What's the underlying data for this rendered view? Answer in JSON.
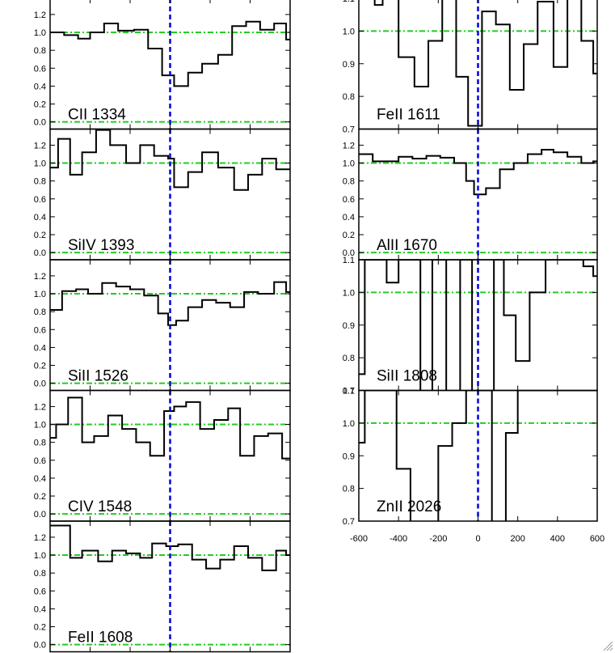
{
  "chart_data": {
    "type": "line",
    "style": {
      "spectrum_color": "#000000",
      "center_line_color": "#0000dd",
      "continuum_line_color": "#22cc22"
    },
    "x_ticks": [
      -600,
      -400,
      -200,
      0,
      200,
      400,
      600
    ],
    "x_tick_labels": [
      "-600",
      "-400",
      "-200",
      "0",
      "200",
      "400",
      "600"
    ],
    "xlim": [
      -600,
      600
    ],
    "panels": [
      {
        "label": "CII 1334",
        "column": "left",
        "row": 0,
        "ylim": [
          -0.08,
          1.38
        ],
        "yticks": [
          0.0,
          0.2,
          0.4,
          0.6,
          0.8,
          1.0,
          1.2
        ],
        "ytick_labels": [
          "0.0",
          "0.2",
          "0.4",
          "0.6",
          "0.8",
          "1.0",
          "1.2"
        ],
        "continuum": [
          0,
          1
        ],
        "x": [
          -600,
          -530,
          -460,
          -400,
          -330,
          -260,
          -180,
          -110,
          -40,
          20,
          90,
          160,
          240,
          310,
          380,
          450,
          520,
          580
        ],
        "y": [
          1.0,
          0.97,
          0.93,
          1.0,
          1.1,
          1.02,
          1.03,
          0.82,
          0.52,
          0.4,
          0.55,
          0.65,
          0.75,
          1.07,
          1.12,
          1.03,
          1.1,
          0.92
        ]
      },
      {
        "label": "SiIV 1393",
        "column": "left",
        "row": 1,
        "ylim": [
          -0.08,
          1.38
        ],
        "yticks": [
          0.0,
          0.2,
          0.4,
          0.6,
          0.8,
          1.0,
          1.2
        ],
        "ytick_labels": [
          "0.0",
          "0.2",
          "0.4",
          "0.6",
          "0.8",
          "1.0",
          "1.2"
        ],
        "continuum": [
          0,
          1
        ],
        "x": [
          -600,
          -560,
          -500,
          -440,
          -370,
          -300,
          -220,
          -150,
          -80,
          -10,
          20,
          90,
          160,
          240,
          320,
          390,
          460,
          530
        ],
        "y": [
          0.95,
          1.27,
          0.87,
          1.12,
          1.37,
          1.2,
          1.0,
          1.2,
          1.08,
          1.05,
          0.73,
          0.9,
          1.12,
          0.95,
          0.7,
          0.87,
          1.05,
          0.93
        ]
      },
      {
        "label": "SiII 1526",
        "column": "left",
        "row": 2,
        "ylim": [
          -0.08,
          1.38
        ],
        "yticks": [
          0.0,
          0.2,
          0.4,
          0.6,
          0.8,
          1.0,
          1.2
        ],
        "ytick_labels": [
          "0.0",
          "0.2",
          "0.4",
          "0.6",
          "0.8",
          "1.0",
          "1.2"
        ],
        "continuum": [
          0,
          1
        ],
        "x": [
          -600,
          -540,
          -470,
          -410,
          -340,
          -270,
          -200,
          -130,
          -60,
          -10,
          30,
          90,
          160,
          230,
          300,
          370,
          440,
          520,
          580
        ],
        "y": [
          0.82,
          1.03,
          1.05,
          1.0,
          1.12,
          1.08,
          1.05,
          0.98,
          0.78,
          0.65,
          0.7,
          0.85,
          0.93,
          0.9,
          0.85,
          1.02,
          1.0,
          1.13,
          1.02
        ]
      },
      {
        "label": "CIV 1548",
        "column": "left",
        "row": 3,
        "ylim": [
          -0.08,
          1.38
        ],
        "yticks": [
          0.0,
          0.2,
          0.4,
          0.6,
          0.8,
          1.0,
          1.2
        ],
        "ytick_labels": [
          "0.0",
          "0.2",
          "0.4",
          "0.6",
          "0.8",
          "1.0",
          "1.2"
        ],
        "continuum": [
          0,
          1
        ],
        "x": [
          -600,
          -570,
          -510,
          -440,
          -380,
          -310,
          -240,
          -170,
          -100,
          -30,
          20,
          80,
          150,
          220,
          290,
          350,
          420,
          490,
          560
        ],
        "y": [
          0.85,
          1.0,
          1.3,
          0.8,
          0.87,
          1.1,
          0.95,
          0.8,
          0.65,
          1.15,
          1.2,
          1.25,
          0.95,
          1.05,
          1.18,
          0.65,
          0.87,
          0.9,
          0.62
        ]
      },
      {
        "label": "FeII 1608",
        "column": "left",
        "row": 4,
        "ylim": [
          -0.08,
          1.38
        ],
        "yticks": [
          0.0,
          0.2,
          0.4,
          0.6,
          0.8,
          1.0,
          1.2
        ],
        "ytick_labels": [
          "0.0",
          "0.2",
          "0.4",
          "0.6",
          "0.8",
          "1.0",
          "1.2"
        ],
        "continuum": [
          0,
          1
        ],
        "x": [
          -600,
          -500,
          -440,
          -360,
          -290,
          -220,
          -150,
          -90,
          -20,
          40,
          110,
          180,
          250,
          320,
          390,
          460,
          530,
          580
        ],
        "y": [
          1.33,
          0.97,
          1.05,
          0.93,
          1.05,
          1.02,
          0.97,
          1.13,
          1.1,
          1.12,
          0.95,
          0.85,
          0.95,
          1.1,
          0.97,
          0.83,
          1.05,
          1.0
        ]
      },
      {
        "label": "FeII 1611",
        "column": "right",
        "row": 0,
        "ylim": [
          0.7,
          1.1
        ],
        "yticks": [
          0.7,
          0.8,
          0.9,
          1.0,
          1.1
        ],
        "ytick_labels": [
          "0.7",
          "0.8",
          "0.9",
          "1.0",
          "1.1"
        ],
        "continuum": [
          1
        ],
        "x": [
          -600,
          -520,
          -480,
          -400,
          -320,
          -250,
          -180,
          -110,
          -50,
          20,
          90,
          160,
          230,
          300,
          380,
          450,
          520,
          580
        ],
        "y": [
          1.1,
          1.08,
          1.1,
          0.92,
          0.83,
          0.97,
          1.1,
          0.86,
          0.71,
          1.06,
          1.02,
          0.82,
          0.96,
          1.09,
          0.89,
          1.1,
          0.97,
          0.87
        ]
      },
      {
        "label": "AlII 1670",
        "column": "right",
        "row": 1,
        "ylim": [
          -0.08,
          1.38
        ],
        "yticks": [
          0.0,
          0.2,
          0.4,
          0.6,
          0.8,
          1.0,
          1.2
        ],
        "ytick_labels": [
          "0.0",
          "0.2",
          "0.4",
          "0.6",
          "0.8",
          "1.0",
          "1.2"
        ],
        "continuum": [
          0,
          1
        ],
        "x": [
          -600,
          -530,
          -470,
          -400,
          -330,
          -260,
          -190,
          -120,
          -60,
          -20,
          40,
          110,
          180,
          250,
          320,
          380,
          450,
          520,
          580
        ],
        "y": [
          1.1,
          1.02,
          1.02,
          1.07,
          1.05,
          1.08,
          1.06,
          1.0,
          0.8,
          0.65,
          0.72,
          0.93,
          1.0,
          1.1,
          1.15,
          1.12,
          1.07,
          1.0,
          1.02
        ]
      },
      {
        "label": "SiII 1808",
        "column": "right",
        "row": 2,
        "ylim": [
          0.7,
          1.1
        ],
        "yticks": [
          0.7,
          0.8,
          0.9,
          1.0,
          1.1
        ],
        "ytick_labels": [
          "0.7",
          "0.8",
          "0.9",
          "1.0",
          "1.1"
        ],
        "continuum": [
          1
        ],
        "x": [
          -600,
          -570,
          -530,
          -460,
          -400,
          -290,
          -230,
          -160,
          -90,
          -30,
          20,
          80,
          130,
          190,
          260,
          340,
          400,
          470,
          530,
          580
        ],
        "y": [
          0.75,
          1.1,
          1.1,
          1.03,
          1.1,
          0.65,
          1.1,
          0.65,
          1.1,
          0.65,
          0.65,
          1.1,
          0.93,
          0.79,
          1.0,
          1.1,
          1.1,
          1.1,
          1.08,
          1.05
        ]
      },
      {
        "label": "ZnII 2026",
        "column": "right",
        "row": 3,
        "ylim": [
          0.7,
          1.1
        ],
        "yticks": [
          0.7,
          0.8,
          0.9,
          1.0,
          1.1
        ],
        "ytick_labels": [
          "0.7",
          "0.8",
          "0.9",
          "1.0",
          "1.1"
        ],
        "continuum": [
          1
        ],
        "x": [
          -600,
          -570,
          -520,
          -410,
          -340,
          -280,
          -200,
          -130,
          -60,
          0,
          70,
          140,
          200,
          280,
          360,
          440,
          520,
          580
        ],
        "y": [
          0.94,
          1.1,
          1.1,
          0.86,
          0.65,
          0.65,
          0.93,
          1.0,
          1.1,
          1.1,
          0.65,
          0.97,
          1.1,
          1.1,
          1.1,
          1.1,
          1.1,
          1.1
        ]
      }
    ]
  }
}
